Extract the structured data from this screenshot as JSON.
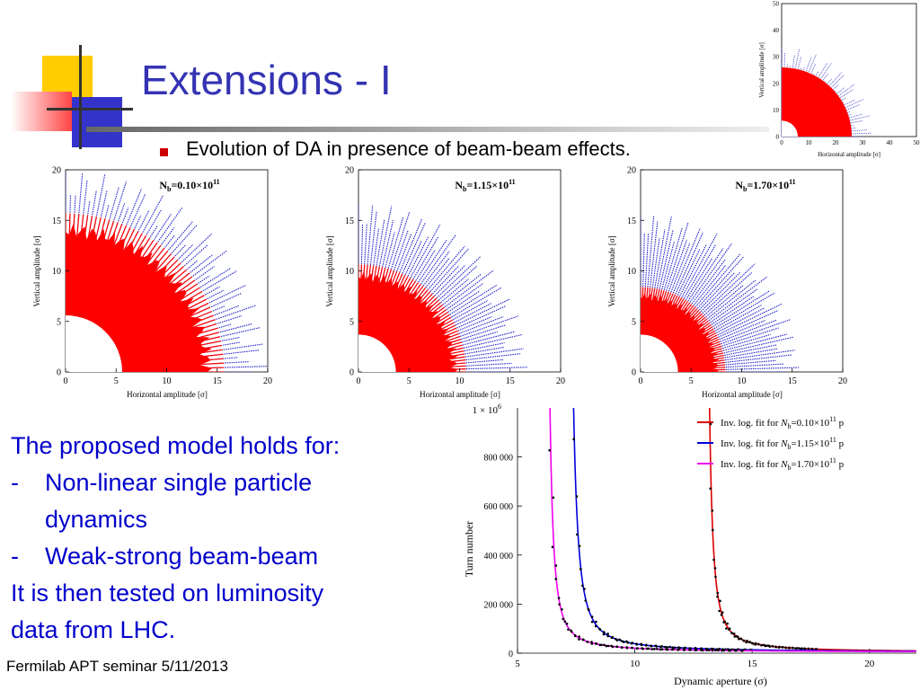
{
  "slide": {
    "title": "Extensions - I",
    "bullet": "Evolution of DA in presence of beam-beam effects.",
    "footer": "Fermilab APT seminar 5/11/2013",
    "accent_color": "#3333b3",
    "text_color": "#0000cc"
  },
  "text_block": {
    "line1": "The proposed model holds for:",
    "item1_dash": "-",
    "item1_line1": "Non-linear single particle",
    "item1_line2": "dynamics",
    "item2_dash": "-",
    "item2_line1": "Weak-strong beam-beam",
    "line_end1": "It is then tested on luminosity",
    "line_end2": "data from LHC."
  },
  "chart_data": [
    {
      "type": "scatter",
      "title": "",
      "xlabel": "Horizontal amplitude [σ]",
      "ylabel": "Vertical amplitude [σ]",
      "xlim": [
        0,
        50
      ],
      "ylim": [
        0,
        50
      ],
      "xticks": [
        "0",
        "10",
        "20",
        "30",
        "40",
        "50"
      ],
      "yticks": [
        "0",
        "10",
        "20",
        "30",
        "40",
        "50"
      ],
      "series": [
        {
          "label": "",
          "color": "#ff0000",
          "values": {
            "radius": 26
          }
        },
        {
          "label": "",
          "color": "#0000cc",
          "values": {
            "radius": 30
          }
        }
      ]
    },
    {
      "type": "scatter",
      "annotation": "N_b=0.10×10^11",
      "annotation_main": "N",
      "annotation_sub": "b",
      "annotation_mid": "=0.10×10",
      "annotation_sup": "11",
      "xlabel": "Horizontal amplitude [σ]",
      "ylabel": "Vertical amplitude [σ]",
      "xlim": [
        0,
        20
      ],
      "ylim": [
        0,
        20
      ],
      "xticks": [
        "0",
        "5",
        "10",
        "15",
        "20"
      ],
      "yticks": [
        "0",
        "5",
        "10",
        "15",
        "20"
      ],
      "da_red_radius": 14,
      "da_blue_radius": 18.5,
      "inner_hole_radius": 5.6
    },
    {
      "type": "scatter",
      "annotation": "N_b=1.15×10^11",
      "annotation_main": "N",
      "annotation_sub": "b",
      "annotation_mid": "=1.15×10",
      "annotation_sup": "11",
      "xlabel": "Horizontal amplitude [σ]",
      "ylabel": "Vertical amplitude [σ]",
      "xlim": [
        0,
        20
      ],
      "ylim": [
        0,
        20
      ],
      "xticks": [
        "0",
        "5",
        "10",
        "15",
        "20"
      ],
      "yticks": [
        "0",
        "5",
        "10",
        "15",
        "20"
      ],
      "da_red_radius": 9.5,
      "da_blue_radius": 15.5,
      "inner_hole_radius": 3.7
    },
    {
      "type": "scatter",
      "annotation": "N_b=1.70×10^11",
      "annotation_main": "N",
      "annotation_sub": "b",
      "annotation_mid": "=1.70×10",
      "annotation_sup": "11",
      "xlabel": "Horizontal amplitude [σ]",
      "ylabel": "Vertical amplitude [σ]",
      "xlim": [
        0,
        20
      ],
      "ylim": [
        0,
        20
      ],
      "xticks": [
        "0",
        "5",
        "10",
        "15",
        "20"
      ],
      "yticks": [
        "0",
        "5",
        "10",
        "15",
        "20"
      ],
      "da_red_radius": 7.5,
      "da_blue_radius": 14.5,
      "inner_hole_radius": 3.7
    },
    {
      "type": "line",
      "xlabel": "Dynamic aperture (σ)",
      "ylabel": "Turn number",
      "xlim": [
        5,
        22
      ],
      "ylim": [
        0,
        1000000
      ],
      "xticks": [
        "5",
        "10",
        "15",
        "20"
      ],
      "yticks": [
        "0",
        "200 000",
        "400 000",
        "600 000",
        "800 000"
      ],
      "ytop_label_main": "1 × 10",
      "ytop_label_sup": "6",
      "series": [
        {
          "name": "Inv. log. fit for N_b=0.10×10^11 p",
          "legend_text": "Inv. log. fit for",
          "legend_n": "N",
          "legend_sub": "b",
          "legend_mid": "=0.10×10",
          "legend_sup": "11",
          "legend_tail": " p",
          "color": "#dd0000",
          "x0": 12.6,
          "k": 0.85
        },
        {
          "name": "Inv. log. fit for N_b=1.15×10^11 p",
          "legend_text": "Inv. log. fit for",
          "legend_n": "N",
          "legend_sub": "b",
          "legend_mid": "=1.15×10",
          "legend_sup": "11",
          "legend_tail": " p",
          "color": "#0000dd",
          "x0": 6.6,
          "k": 1.15
        },
        {
          "name": "Inv. log. fit for N_b=1.70×10^11 p",
          "legend_text": "Inv. log. fit for",
          "legend_n": "N",
          "legend_sub": "b",
          "legend_mid": "=1.70×10",
          "legend_sup": "11",
          "legend_tail": " p",
          "color": "#ee00ee",
          "x0": 5.8,
          "k": 0.85
        }
      ]
    }
  ]
}
